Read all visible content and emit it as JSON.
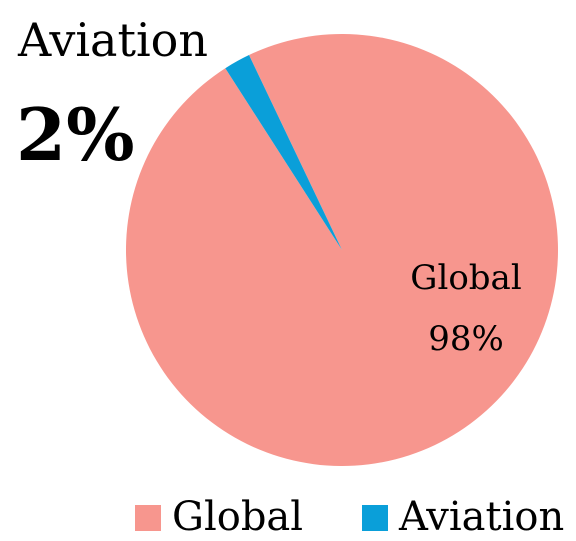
{
  "chart_data": {
    "type": "pie",
    "title": "",
    "slices": [
      {
        "label": "Global",
        "value": 98,
        "value_label": "98%",
        "color": "#f7968e"
      },
      {
        "label": "Aviation",
        "value": 2,
        "value_label": "2%",
        "color": "#0a9fd9"
      }
    ],
    "legend": {
      "placement": "bottom-right",
      "entries": [
        "Global",
        "Aviation"
      ]
    }
  }
}
